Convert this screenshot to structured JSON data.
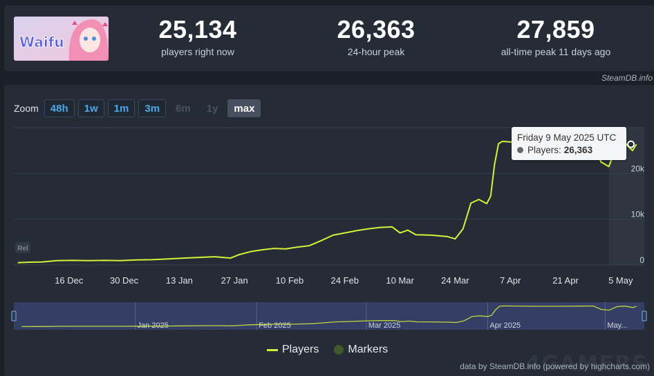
{
  "header": {
    "logo_text": "Waifu",
    "stats": [
      {
        "value": "25,134",
        "label": "players right now"
      },
      {
        "value": "26,363",
        "label": "24-hour peak"
      },
      {
        "value": "27,859",
        "label": "all-time peak 11 days ago"
      }
    ],
    "credit": "SteamDB.info"
  },
  "zoom": {
    "label": "Zoom",
    "buttons": [
      "48h",
      "1w",
      "1m",
      "3m",
      "6m",
      "1y",
      "max"
    ],
    "active": "max",
    "disabled": [
      "6m",
      "1y"
    ]
  },
  "tooltip": {
    "date": "Friday 9 May 2025 UTC",
    "series_label": "Players:",
    "value": "26,363"
  },
  "legend": {
    "players": "Players",
    "markers": "Markers"
  },
  "footer_credit": "data by SteamDB.info (powered by highcharts.com)",
  "release_badge": "Rel",
  "colors": {
    "line": "#d4f23a",
    "background": "#262c36",
    "navigator_fill": "#3b4576",
    "grid": "#3a424e"
  },
  "chart_data": {
    "type": "line",
    "title": "",
    "xlabel": "",
    "ylabel": "",
    "ylim": [
      0,
      30000
    ],
    "y_ticks": [
      "0",
      "10k",
      "20k"
    ],
    "x_ticks": [
      "16 Dec",
      "30 Dec",
      "13 Jan",
      "27 Jan",
      "10 Feb",
      "24 Feb",
      "10 Mar",
      "24 Mar",
      "7 Apr",
      "21 Apr",
      "5 May"
    ],
    "navigator_ticks": [
      "Jan 2025",
      "Feb 2025",
      "Mar 2025",
      "Apr 2025",
      "May..."
    ],
    "series": [
      {
        "name": "Players",
        "x": [
          "2024-12-03",
          "2024-12-06",
          "2024-12-09",
          "2024-12-13",
          "2024-12-17",
          "2024-12-21",
          "2024-12-25",
          "2024-12-29",
          "2025-01-02",
          "2025-01-06",
          "2025-01-10",
          "2025-01-14",
          "2025-01-18",
          "2025-01-22",
          "2025-01-26",
          "2025-01-28",
          "2025-01-31",
          "2025-02-03",
          "2025-02-06",
          "2025-02-09",
          "2025-02-12",
          "2025-02-15",
          "2025-02-18",
          "2025-02-21",
          "2025-02-24",
          "2025-02-27",
          "2025-03-02",
          "2025-03-05",
          "2025-03-08",
          "2025-03-10",
          "2025-03-12",
          "2025-03-14",
          "2025-03-18",
          "2025-03-22",
          "2025-03-24",
          "2025-03-26",
          "2025-03-28",
          "2025-03-30",
          "2025-04-01",
          "2025-04-02",
          "2025-04-03",
          "2025-04-04",
          "2025-04-05",
          "2025-04-08",
          "2025-04-12",
          "2025-04-16",
          "2025-04-20",
          "2025-04-24",
          "2025-04-28",
          "2025-04-30",
          "2025-05-02",
          "2025-05-04",
          "2025-05-06",
          "2025-05-08",
          "2025-05-09"
        ],
        "y": [
          500,
          600,
          650,
          950,
          1000,
          950,
          1000,
          950,
          1100,
          1150,
          1300,
          1500,
          1650,
          1800,
          1500,
          2200,
          2900,
          3300,
          3600,
          3500,
          3900,
          4200,
          5300,
          6500,
          7000,
          7500,
          7900,
          8200,
          8300,
          7000,
          7600,
          6600,
          6500,
          6200,
          5700,
          7900,
          13500,
          14300,
          13400,
          15000,
          22000,
          26500,
          27000,
          26800,
          26600,
          26600,
          26600,
          26700,
          26900,
          22500,
          21500,
          26000,
          26700,
          25000,
          26363
        ]
      }
    ],
    "tooltip_point": {
      "x": "2025-05-09",
      "y": 26363
    }
  }
}
